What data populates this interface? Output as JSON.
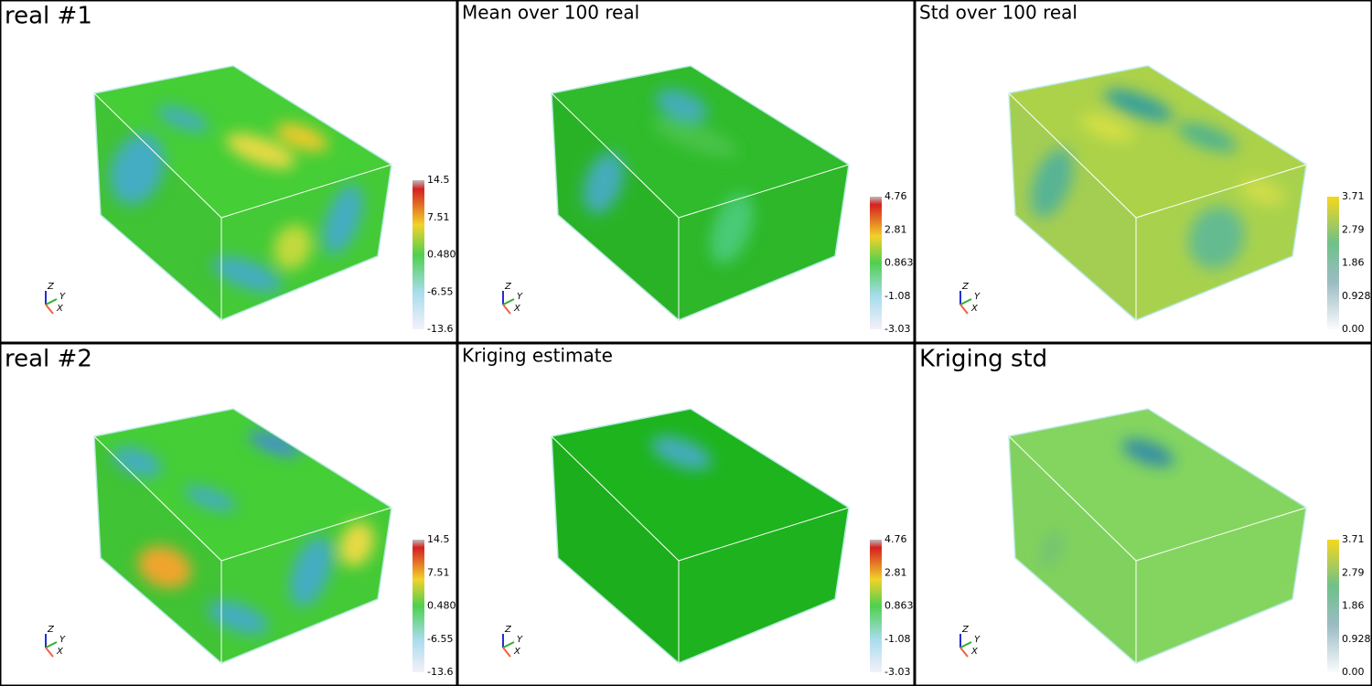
{
  "panels": [
    {
      "title": "real #1",
      "colorbar": [
        "14.5",
        "7.51",
        "0.480",
        "-6.55",
        "-13.6"
      ]
    },
    {
      "title": "Mean over 100 real",
      "colorbar": [
        "4.76",
        "2.81",
        "0.863",
        "-1.08",
        "-3.03"
      ]
    },
    {
      "title": "Std over 100 real",
      "colorbar": [
        "3.71",
        "2.79",
        "1.86",
        "0.928",
        "0.00"
      ]
    },
    {
      "title": "real #2",
      "colorbar": [
        "14.5",
        "7.51",
        "0.480",
        "-6.55",
        "-13.6"
      ]
    },
    {
      "title": "Kriging estimate",
      "colorbar": [
        "4.76",
        "2.81",
        "0.863",
        "-1.08",
        "-3.03"
      ]
    },
    {
      "title": "Kriging std",
      "colorbar": [
        "3.71",
        "2.79",
        "1.86",
        "0.928",
        "0.00"
      ]
    }
  ],
  "axes_labels": {
    "z": "Z",
    "y": "Y",
    "x": "X"
  }
}
